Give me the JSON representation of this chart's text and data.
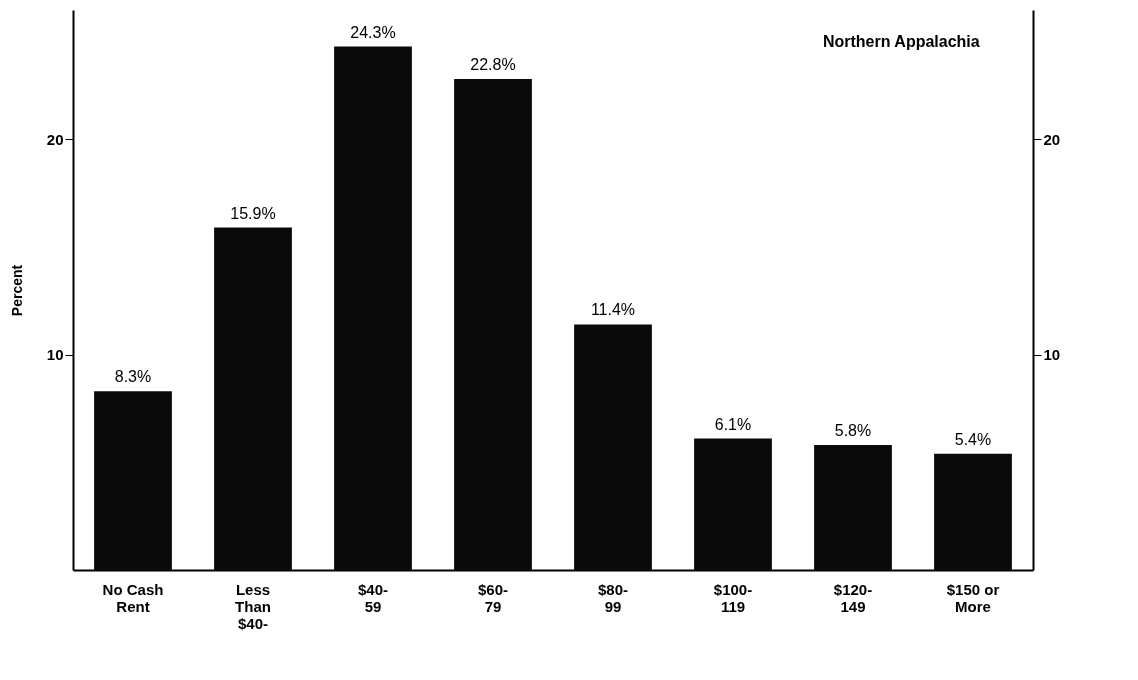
{
  "chart_data": {
    "type": "bar",
    "title": "Northern Appalachia",
    "ylabel": "Percent",
    "categories": [
      "No Cash Rent",
      "Less Than $40-",
      "$40-59",
      "$60-79",
      "$80-99",
      "$100-119",
      "$120-149",
      "$150 or More"
    ],
    "values": [
      8.3,
      15.9,
      24.3,
      22.8,
      11.4,
      6.1,
      5.8,
      5.4
    ],
    "value_labels": [
      "8.3%",
      "15.9%",
      "24.3%",
      "22.8%",
      "11.4%",
      "6.1%",
      "5.8%",
      "5.4%"
    ],
    "color": "#0a0a0a",
    "ylim": [
      0,
      26
    ],
    "yticks": [
      10,
      20
    ],
    "y2lim": [
      0,
      26
    ],
    "y2ticks": [
      10,
      20
    ],
    "grid": false
  }
}
